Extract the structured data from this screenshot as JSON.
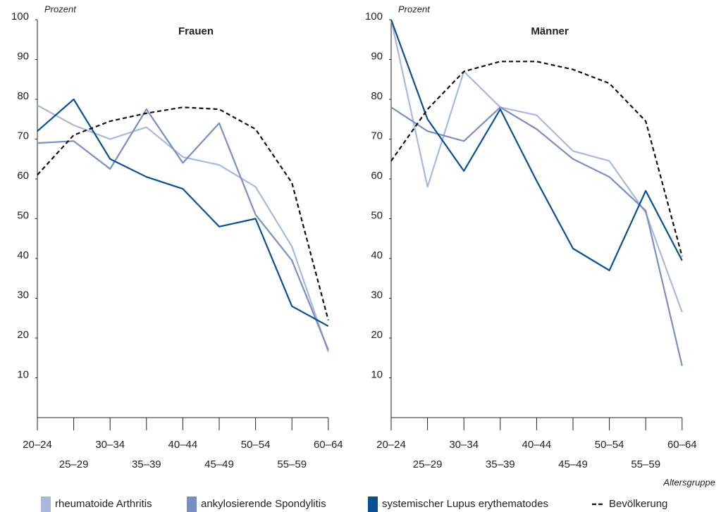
{
  "chart_data": [
    {
      "type": "line",
      "title": "Frauen",
      "y_label": "Prozent",
      "categories": [
        "20–24",
        "25–29",
        "30–34",
        "35–39",
        "40–44",
        "45–49",
        "50–54",
        "55–59",
        "60–64"
      ],
      "ylim": [
        0,
        100
      ],
      "yticks": [
        10,
        20,
        30,
        40,
        50,
        60,
        70,
        80,
        90,
        100
      ],
      "series": [
        {
          "name": "rheumatoide Arthritis",
          "color": "#a9b8dc",
          "values": [
            78.5,
            73.5,
            70,
            73,
            65.5,
            63.5,
            58,
            43,
            16.5
          ]
        },
        {
          "name": "ankylosierende Spondylitis",
          "color": "#7b8ec4",
          "values": [
            69,
            69.5,
            62.5,
            77.5,
            64,
            74,
            51,
            39.5,
            17
          ]
        },
        {
          "name": "systemischer Lupus erythematodes",
          "color": "#0a4f92",
          "values": [
            72,
            80,
            65,
            60.5,
            57.5,
            48,
            50,
            28,
            23
          ]
        },
        {
          "name": "Bevölkerung",
          "color": "#111111",
          "dashed": true,
          "values": [
            61,
            71,
            74.5,
            76.5,
            78,
            77.5,
            72.5,
            59,
            24.5
          ]
        }
      ]
    },
    {
      "type": "line",
      "title": "Männer",
      "y_label": "Prozent",
      "x_label": "Altersgruppe",
      "categories": [
        "20–24",
        "25–29",
        "30–34",
        "35–39",
        "40–44",
        "45–49",
        "50–54",
        "55–59",
        "60–64"
      ],
      "ylim": [
        0,
        100
      ],
      "yticks": [
        10,
        20,
        30,
        40,
        50,
        60,
        70,
        80,
        90,
        100
      ],
      "series": [
        {
          "name": "rheumatoide Arthritis",
          "color": "#a9b8dc",
          "values": [
            100,
            58,
            87,
            78,
            76,
            67,
            64.5,
            51.5,
            26.5
          ]
        },
        {
          "name": "ankylosierende Spondylitis",
          "color": "#7b8ec4",
          "values": [
            78,
            72,
            69.5,
            78,
            72.5,
            65,
            60.5,
            52,
            13
          ]
        },
        {
          "name": "systemischer Lupus erythematodes",
          "color": "#0a4f92",
          "values": [
            100,
            75,
            62,
            77.5,
            59.5,
            42.5,
            37,
            57,
            39.5
          ]
        },
        {
          "name": "Bevölkerung",
          "color": "#111111",
          "dashed": true,
          "values": [
            64.5,
            77.5,
            87,
            89.5,
            89.5,
            87.5,
            84,
            74.5,
            40.5
          ]
        }
      ]
    }
  ]
}
